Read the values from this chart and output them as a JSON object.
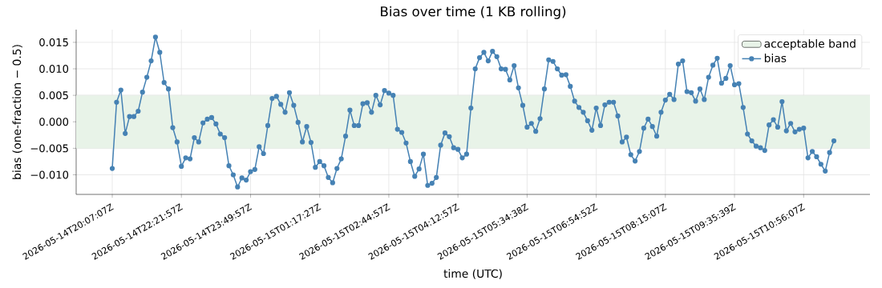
{
  "chart_data": {
    "type": "line",
    "title": "Bias over time (1 KB rolling)",
    "xlabel": "time (UTC)",
    "ylabel": "bias (one-fraction − 0.5)",
    "categories": [
      "2026-05-14T20:07:07Z",
      null,
      null,
      null,
      null,
      null,
      null,
      null,
      null,
      null,
      null,
      null,
      null,
      null,
      null,
      null,
      "2026-05-14T22:21:57Z",
      null,
      null,
      null,
      null,
      null,
      null,
      null,
      null,
      null,
      null,
      null,
      null,
      null,
      null,
      null,
      "2026-05-14T23:49:57Z",
      null,
      null,
      null,
      null,
      null,
      null,
      null,
      null,
      null,
      null,
      null,
      null,
      null,
      null,
      null,
      "2026-05-15T01:17:27Z",
      null,
      null,
      null,
      null,
      null,
      null,
      null,
      null,
      null,
      null,
      null,
      null,
      null,
      null,
      null,
      "2026-05-15T02:44:57Z",
      null,
      null,
      null,
      null,
      null,
      null,
      null,
      null,
      null,
      null,
      null,
      null,
      null,
      null,
      null,
      "2026-05-15T04:12:57Z",
      null,
      null,
      null,
      null,
      null,
      null,
      null,
      null,
      null,
      null,
      null,
      null,
      null,
      null,
      null,
      "2026-05-15T05:34:38Z",
      null,
      null,
      null,
      null,
      null,
      null,
      null,
      null,
      null,
      null,
      null,
      null,
      null,
      null,
      null,
      "2026-05-15T06:54:52Z",
      null,
      null,
      null,
      null,
      null,
      null,
      null,
      null,
      null,
      null,
      null,
      null,
      null,
      null,
      null,
      "2026-05-15T08:15:07Z",
      null,
      null,
      null,
      null,
      null,
      null,
      null,
      null,
      null,
      null,
      null,
      null,
      null,
      null,
      null,
      "2026-05-15T09:35:39Z",
      null,
      null,
      null,
      null,
      null,
      null,
      null,
      null,
      null,
      null,
      null,
      null,
      null,
      null,
      null,
      "2026-05-15T10:56:07Z",
      null,
      null,
      null,
      null,
      null,
      null,
      null
    ],
    "series": [
      {
        "name": "bias",
        "color": "#4682b4",
        "values": [
          -0.0088,
          0.0037,
          0.006,
          -0.0022,
          0.001,
          0.001,
          0.002,
          0.0056,
          0.0084,
          0.0115,
          0.016,
          0.0131,
          0.0074,
          0.0062,
          -0.0011,
          -0.0038,
          -0.0084,
          -0.0068,
          -0.007,
          -0.003,
          -0.0038,
          -0.0002,
          0.0005,
          0.0008,
          -0.0004,
          -0.0023,
          -0.003,
          -0.0083,
          -0.01,
          -0.0123,
          -0.0106,
          -0.011,
          -0.0094,
          -0.009,
          -0.0047,
          -0.006,
          -0.0007,
          0.0044,
          0.0048,
          0.0033,
          0.0018,
          0.0055,
          0.0031,
          -0.0001,
          -0.0038,
          -0.0009,
          -0.0039,
          -0.0086,
          -0.0075,
          -0.0083,
          -0.0105,
          -0.0115,
          -0.0088,
          -0.007,
          -0.0027,
          0.0022,
          -0.0007,
          -0.0007,
          0.0034,
          0.0036,
          0.0018,
          0.005,
          0.0032,
          0.0059,
          0.0054,
          0.005,
          -0.0014,
          -0.002,
          -0.004,
          -0.0075,
          -0.0103,
          -0.0089,
          -0.0061,
          -0.012,
          -0.0116,
          -0.0105,
          -0.0044,
          -0.0021,
          -0.0028,
          -0.0049,
          -0.0052,
          -0.0068,
          -0.0061,
          0.0026,
          0.01,
          0.0121,
          0.0131,
          0.0115,
          0.0133,
          0.0123,
          0.01,
          0.0099,
          0.0079,
          0.0106,
          0.0064,
          0.0031,
          -0.001,
          -0.0003,
          -0.0018,
          0.0006,
          0.0062,
          0.0117,
          0.0114,
          0.01,
          0.0088,
          0.0089,
          0.0067,
          0.0039,
          0.0027,
          0.0018,
          0.0002,
          -0.0016,
          0.0026,
          -0.0007,
          0.0032,
          0.0037,
          0.0037,
          0.0011,
          -0.0038,
          -0.0029,
          -0.0062,
          -0.0074,
          -0.0056,
          -0.0012,
          0.0005,
          -0.0009,
          -0.0027,
          0.0018,
          0.0041,
          0.0052,
          0.0042,
          0.0109,
          0.0115,
          0.0057,
          0.0055,
          0.0039,
          0.0062,
          0.0042,
          0.0084,
          0.0107,
          0.012,
          0.0073,
          0.0082,
          0.0106,
          0.007,
          0.0072,
          0.0027,
          -0.0023,
          -0.0036,
          -0.0046,
          -0.0049,
          -0.0054,
          -0.0006,
          0.0004,
          -0.001,
          0.0038,
          -0.0017,
          -0.0003,
          -0.0019,
          -0.0014,
          -0.0012,
          -0.0068,
          -0.0056,
          -0.0066,
          -0.008,
          -0.0093,
          -0.0058,
          -0.0036
        ]
      }
    ],
    "ylim": [
      -0.0137,
      0.0174
    ],
    "yticks": [
      {
        "value": -0.01,
        "label": "−0.010"
      },
      {
        "value": -0.005,
        "label": "−0.005"
      },
      {
        "value": 0,
        "label": "0.000"
      },
      {
        "value": 0.005,
        "label": "0.005"
      },
      {
        "value": 0.01,
        "label": "0.010"
      },
      {
        "value": 0.015,
        "label": "0.015"
      }
    ],
    "bands": [
      {
        "axis": "y",
        "from": -0.005,
        "to": 0.005,
        "label": "acceptable band",
        "color": "#e8f3e8"
      }
    ],
    "grid": true,
    "legend": "top right",
    "marker": "circle",
    "line_style": "solid"
  }
}
